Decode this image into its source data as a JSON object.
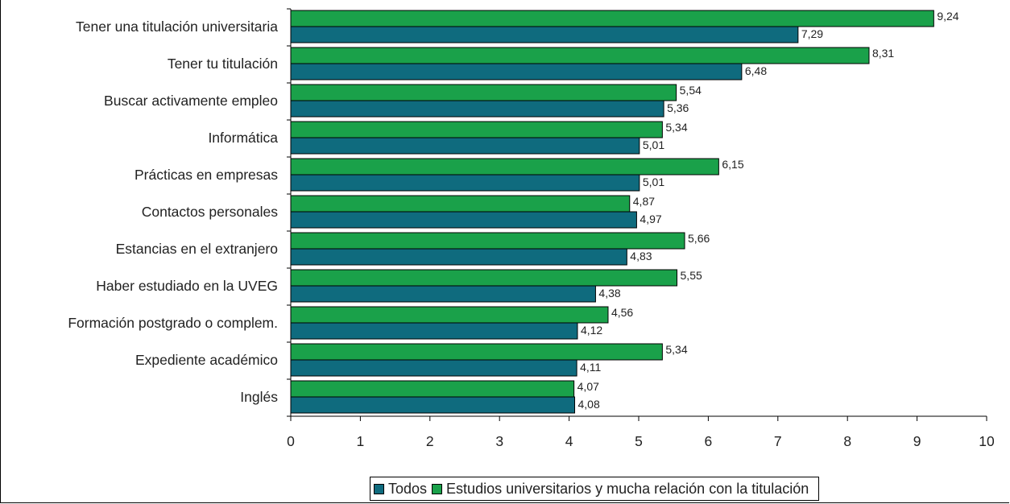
{
  "chart_data": {
    "type": "bar",
    "orientation": "horizontal",
    "categories": [
      "Tener una titulación universitaria",
      "Tener tu titulación",
      "Buscar activamente empleo",
      "Informática",
      "Prácticas en empresas",
      "Contactos personales",
      "Estancias en el extranjero",
      "Haber estudiado en la UVEG",
      "Formación postgrado o complem.",
      "Expediente académico",
      "Inglés"
    ],
    "series": [
      {
        "name": "Estudios universitarios y mucha relación con la titulación",
        "color": "#1aa14a",
        "values": [
          9.24,
          8.31,
          5.54,
          5.34,
          6.15,
          4.87,
          5.66,
          5.55,
          4.56,
          5.34,
          4.07
        ],
        "labels": [
          "9,24",
          "8,31",
          "5,54",
          "5,34",
          "6,15",
          "4,87",
          "5,66",
          "5,55",
          "4,56",
          "5,34",
          "4,07"
        ]
      },
      {
        "name": "Todos",
        "color": "#0f6b7e",
        "values": [
          7.29,
          6.48,
          5.36,
          5.01,
          5.01,
          4.97,
          4.83,
          4.38,
          4.12,
          4.11,
          4.08
        ],
        "labels": [
          "7,29",
          "6,48",
          "5,36",
          "5,01",
          "5,01",
          "4,97",
          "4,83",
          "4,38",
          "4,12",
          "4,11",
          "4,08"
        ]
      }
    ],
    "xlim": [
      0,
      10
    ],
    "xticks": [
      "0",
      "1",
      "2",
      "3",
      "4",
      "5",
      "6",
      "7",
      "8",
      "9",
      "10"
    ],
    "grid": false,
    "legend": {
      "position": "bottom",
      "entries": [
        {
          "name": "Todos",
          "color": "#0f6b7e"
        },
        {
          "name": "Estudios universitarios y mucha relación con la titulación",
          "color": "#1aa14a"
        }
      ]
    }
  }
}
